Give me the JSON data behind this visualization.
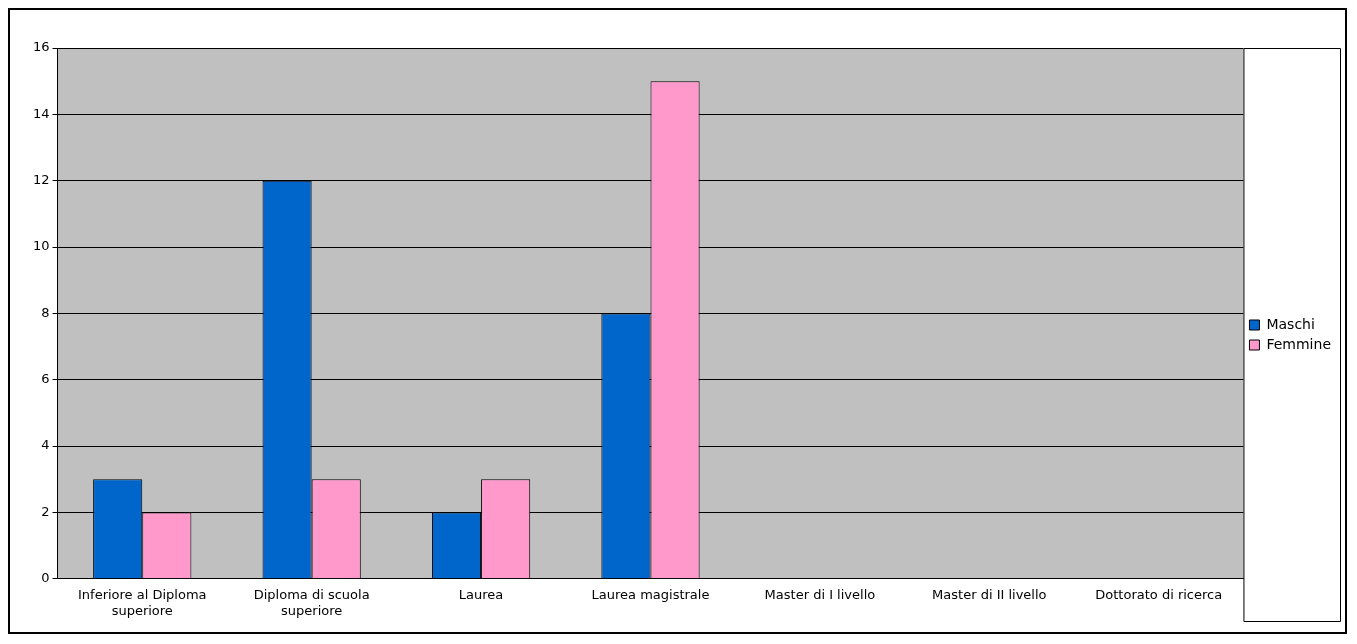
{
  "chart_data": {
    "type": "bar",
    "categories": [
      "Inferiore al Diploma superiore",
      "Diploma di scuola superiore",
      "Laurea",
      "Laurea magistrale",
      "Master di I livello",
      "Master di II livello",
      "Dottorato di ricerca"
    ],
    "series": [
      {
        "name": "Maschi",
        "color": "#0066cc",
        "values": [
          3,
          12,
          2,
          8,
          0,
          0,
          0
        ]
      },
      {
        "name": "Femmine",
        "color": "#ff99cc",
        "values": [
          2,
          3,
          3,
          15,
          0,
          0,
          0
        ]
      }
    ],
    "ylim": [
      0,
      16
    ],
    "yticks": [
      0,
      2,
      4,
      6,
      8,
      10,
      12,
      14,
      16
    ],
    "grid": "y",
    "legend": "right"
  }
}
